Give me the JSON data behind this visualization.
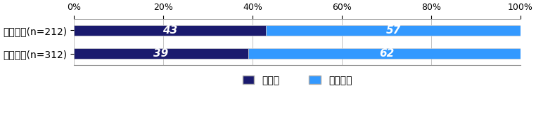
{
  "categories": [
    "３年未満(n=212)",
    "３年以上(n=312)"
  ],
  "series": [
    {
      "label": "あった",
      "values": [
        43,
        39
      ],
      "color": "#1a1a6e"
    },
    {
      "label": "なかった",
      "values": [
        57,
        62
      ],
      "color": "#3399ff"
    }
  ],
  "xlim": [
    0,
    100
  ],
  "xticks": [
    0,
    20,
    40,
    60,
    80,
    100
  ],
  "xticklabels": [
    "0%",
    "20%",
    "40%",
    "60%",
    "80%",
    "100%"
  ],
  "bar_height": 0.45,
  "background_color": "#ffffff",
  "text_color": "#ffffff",
  "label_fontsize": 10,
  "tick_fontsize": 9,
  "legend_fontsize": 10,
  "value_fontsize": 11
}
